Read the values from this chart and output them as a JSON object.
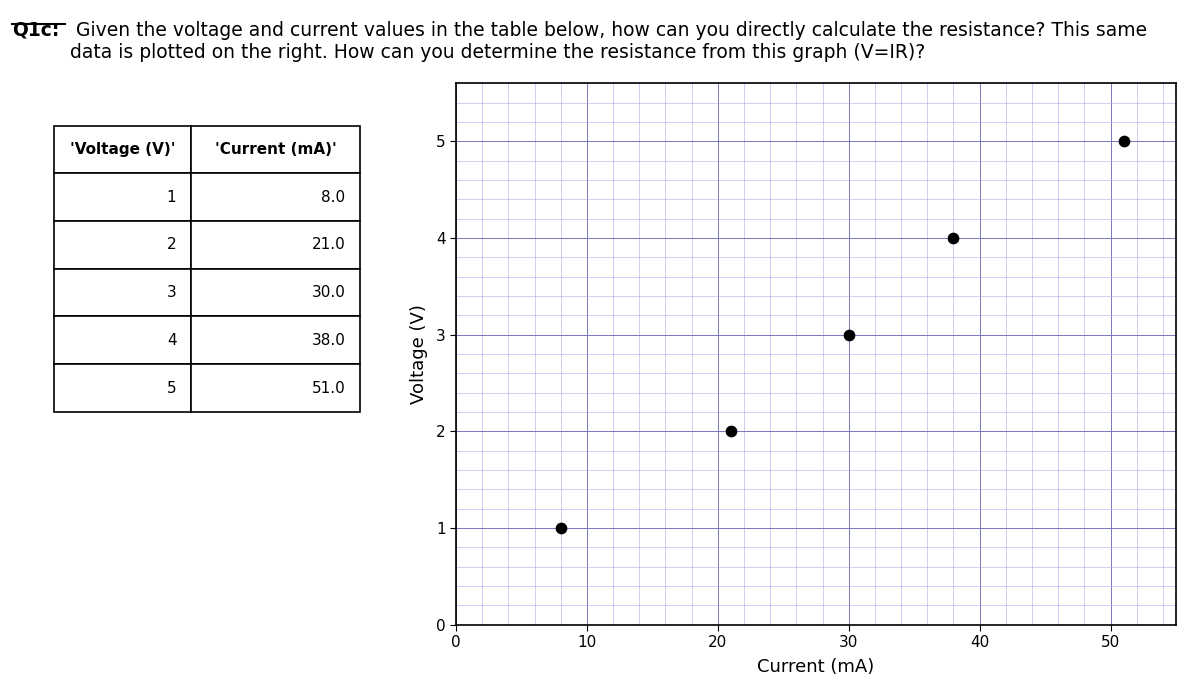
{
  "title_bold": "Q1c:",
  "title_rest": " Given the voltage and current values in the table below, how can you directly calculate the resistance? This same\ndata is plotted on the right. How can you determine the resistance from this graph (V=IR)?",
  "table_col_headers": [
    "'Voltage (V)'",
    "'Current (mA)'"
  ],
  "table_data": [
    [
      1,
      "8.0"
    ],
    [
      2,
      "21.0"
    ],
    [
      3,
      "30.0"
    ],
    [
      4,
      "38.0"
    ],
    [
      5,
      "51.0"
    ]
  ],
  "current_mA": [
    8.0,
    21.0,
    30.0,
    38.0,
    51.0
  ],
  "voltage_V": [
    1,
    2,
    3,
    4,
    5
  ],
  "xlabel": "Current (mA)",
  "ylabel": "Voltage (V)",
  "xlim": [
    0,
    55
  ],
  "ylim": [
    0,
    5.5
  ],
  "xticks": [
    0,
    10,
    20,
    30,
    40,
    50
  ],
  "yticks": [
    0,
    1,
    2,
    3,
    4,
    5
  ],
  "minor_x_step": 2,
  "minor_y_step": 0.2,
  "grid_minor_color": "#aaaaee",
  "grid_major_color": "#7777bb",
  "dot_color": "#000000",
  "dot_size": 55,
  "background_color": "#ffffff",
  "title_fontsize": 13.5,
  "axis_label_fontsize": 13,
  "tick_fontsize": 11,
  "table_fontsize": 11,
  "table_header_fontsize": 11
}
